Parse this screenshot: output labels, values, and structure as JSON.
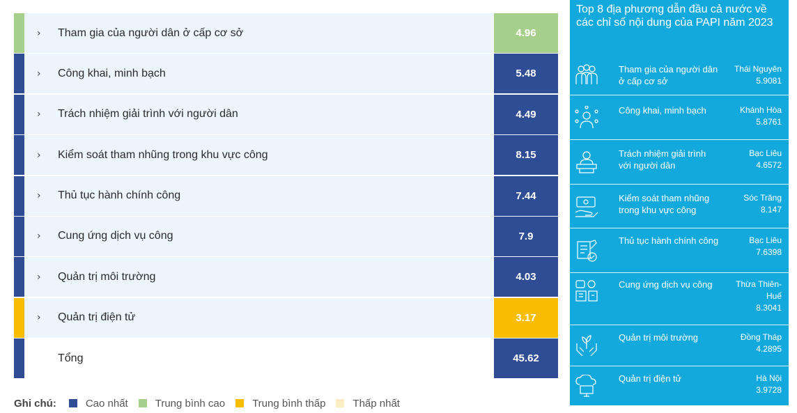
{
  "scores": {
    "rows": [
      {
        "label": "Tham gia của người dân ở cấp cơ sở",
        "value": "4.96",
        "level": "trung-binh-cao",
        "color": "#a6cf8c"
      },
      {
        "label": "Công khai, minh bạch",
        "value": "5.48",
        "level": "cao-nhat",
        "color": "#2e4d94"
      },
      {
        "label": "Trách nhiệm giải trình với người dân",
        "value": "4.49",
        "level": "cao-nhat",
        "color": "#2e4d94"
      },
      {
        "label": "Kiểm soát tham nhũng trong khu vực công",
        "value": "8.15",
        "level": "cao-nhat",
        "color": "#2e4d94"
      },
      {
        "label": "Thủ tục hành chính công",
        "value": "7.44",
        "level": "cao-nhat",
        "color": "#2e4d94"
      },
      {
        "label": "Cung ứng dịch vụ công",
        "value": "7.9",
        "level": "cao-nhat",
        "color": "#2e4d94"
      },
      {
        "label": "Quản trị môi trường",
        "value": "4.03",
        "level": "cao-nhat",
        "color": "#2e4d94"
      },
      {
        "label": "Quản trị điện tử",
        "value": "3.17",
        "level": "trung-binh-thap",
        "color": "#f8bc02"
      }
    ],
    "total": {
      "label": "Tổng",
      "value": "45.62",
      "color": "#2e4d94"
    }
  },
  "legend": {
    "title": "Ghi chú:",
    "items": [
      {
        "label": "Cao nhất",
        "color": "#2e4d94"
      },
      {
        "label": "Trung bình cao",
        "color": "#a6cf8c"
      },
      {
        "label": "Trung bình thấp",
        "color": "#f8bc02"
      },
      {
        "label": "Thấp nhất",
        "color": "#fcedc6"
      }
    ]
  },
  "top8": {
    "title": "Top 8 địa phương dẫn đầu cả nước về các chỉ số nội dung của PAPI năm 2023",
    "background": "#13a9dc",
    "items": [
      {
        "name": "Tham gia của người dân ở cấp cơ sở",
        "province": "Thái Nguyên",
        "score": "5.9081",
        "icon": "people-group-icon"
      },
      {
        "name": "Công khai, minh bạch",
        "province": "Khánh Hòa",
        "score": "5.8761",
        "icon": "person-network-icon"
      },
      {
        "name": "Trách nhiệm giải trình với người dân",
        "province": "Bạc Liêu",
        "score": "4.6572",
        "icon": "speaker-podium-icon"
      },
      {
        "name": "Kiểm soát tham nhũng trong khu vực công",
        "province": "Sóc Trăng",
        "score": "8.147",
        "icon": "money-hand-icon"
      },
      {
        "name": "Thủ tục hành chính công",
        "province": "Bạc Liêu",
        "score": "7.6398",
        "icon": "document-check-icon"
      },
      {
        "name": "Cung ứng dịch vụ công",
        "province": "Thừa Thiên-Huế",
        "score": "8.3041",
        "icon": "public-service-icon"
      },
      {
        "name": "Quản trị môi trường",
        "province": "Đồng Tháp",
        "score": "4.2895",
        "icon": "hands-plant-icon"
      },
      {
        "name": "Quản trị điện tử",
        "province": "Hà Nội",
        "score": "3.9728",
        "icon": "cloud-computer-icon"
      }
    ]
  }
}
